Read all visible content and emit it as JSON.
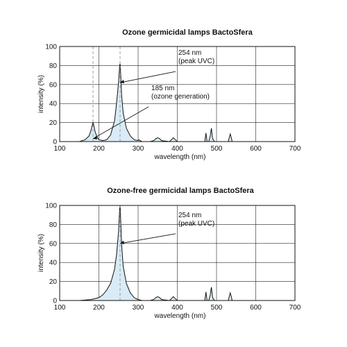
{
  "chart_data": [
    {
      "type": "line",
      "title": "Ozone germicidal lamps BactoSfera",
      "xlabel": "wavelength (nm)",
      "ylabel": "intensity (%)",
      "xlim": [
        100,
        700
      ],
      "ylim": [
        0,
        100
      ],
      "xticks": [
        100,
        200,
        300,
        400,
        500,
        600,
        700
      ],
      "yticks": [
        0,
        20,
        40,
        60,
        80,
        100
      ],
      "grid": true,
      "fill_color": "#d8ebf7",
      "x": [
        150,
        165,
        175,
        180,
        183,
        185,
        187,
        190,
        195,
        200,
        210,
        220,
        230,
        240,
        245,
        250,
        252,
        253,
        254,
        255,
        256,
        258,
        262,
        270,
        280,
        290,
        300,
        302,
        305,
        310,
        330,
        340,
        345,
        350,
        355,
        360,
        380,
        385,
        390,
        395,
        400,
        470,
        472,
        473,
        474,
        476,
        480,
        484,
        486,
        487,
        488,
        490,
        495,
        530,
        533,
        535,
        537,
        540,
        560,
        580
      ],
      "y": [
        0,
        2,
        6,
        12,
        17,
        20,
        17,
        11,
        5,
        2,
        1,
        2,
        7,
        22,
        40,
        62,
        74,
        80,
        82,
        75,
        68,
        48,
        30,
        14,
        6,
        2,
        1,
        2,
        1,
        0,
        0,
        1,
        3,
        4,
        3,
        1,
        0,
        2,
        4,
        2,
        0,
        0,
        6,
        9,
        6,
        0,
        0,
        6,
        12,
        14,
        10,
        3,
        0,
        0,
        5,
        8,
        5,
        0,
        0,
        0
      ],
      "markers": [
        185,
        254
      ],
      "annotations": [
        {
          "x": 254,
          "y": 62,
          "text_lines": [
            "254 nm",
            "(peak UVC)"
          ]
        },
        {
          "x": 185,
          "y": 3,
          "text_lines": [
            "185 nm",
            "(ozone generation)"
          ]
        }
      ]
    },
    {
      "type": "line",
      "title": "Ozone-free germicidal lamps BactoSfera",
      "xlabel": "wavelength (nm)",
      "ylabel": "intensity (%)",
      "xlim": [
        100,
        700
      ],
      "ylim": [
        0,
        100
      ],
      "xticks": [
        100,
        200,
        300,
        400,
        500,
        600,
        700
      ],
      "yticks": [
        0,
        20,
        40,
        60,
        80,
        100
      ],
      "grid": true,
      "fill_color": "#d8ebf7",
      "x": [
        150,
        180,
        200,
        210,
        220,
        230,
        240,
        245,
        250,
        252,
        253,
        254,
        255,
        256,
        258,
        262,
        270,
        280,
        290,
        300,
        310,
        330,
        340,
        345,
        350,
        355,
        360,
        380,
        385,
        390,
        395,
        400,
        470,
        472,
        473,
        474,
        476,
        480,
        484,
        486,
        487,
        488,
        490,
        495,
        530,
        533,
        535,
        537,
        540,
        560,
        580
      ],
      "y": [
        0,
        1,
        3,
        6,
        11,
        18,
        33,
        48,
        72,
        88,
        96,
        100,
        92,
        80,
        58,
        36,
        18,
        8,
        3,
        1,
        0,
        0,
        1,
        3,
        4,
        3,
        1,
        0,
        2,
        4,
        2,
        0,
        0,
        6,
        9,
        6,
        0,
        0,
        6,
        12,
        14,
        10,
        3,
        0,
        0,
        5,
        8,
        5,
        0,
        0,
        0
      ],
      "markers": [
        254
      ],
      "annotations": [
        {
          "x": 254,
          "y": 60,
          "text_lines": [
            "254 nm",
            "(peak UVC)"
          ]
        }
      ]
    }
  ]
}
